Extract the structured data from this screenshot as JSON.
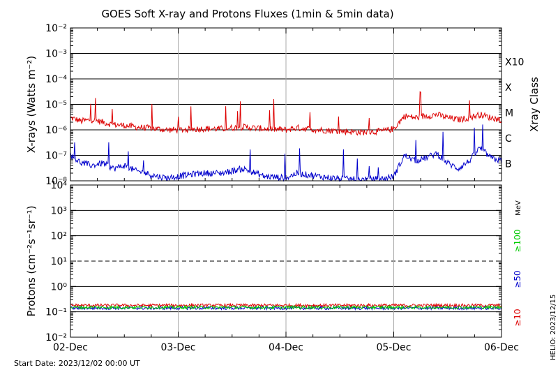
{
  "title": "GOES Soft X-ray and Protons Fluxes   (1min & 5min data)",
  "start_date": "Start Date: 2023/12/02 00:00 UT",
  "stamp": "HELIO: 2023/12/15",
  "chart_data": [
    {
      "type": "line",
      "panel": "xrays",
      "ylabel": "X-rays (Watts m⁻²)",
      "y_scale": "log",
      "ylim": [
        1e-08,
        0.01
      ],
      "y_ticks": [
        "10⁻²",
        "10⁻³",
        "10⁻⁴",
        "10⁻⁵",
        "10⁻⁶",
        "10⁻⁷",
        "10⁻⁸"
      ],
      "right_label": "Xray Class",
      "class_labels": [
        "X10",
        "X",
        "M",
        "C",
        "B"
      ],
      "class_levels": [
        0.001,
        0.0001,
        1e-05,
        1e-06,
        1e-07
      ],
      "grid": "horizontal at each decade, vertical at each day",
      "x_ticks": [
        "02-Dec",
        "03-Dec",
        "04-Dec",
        "05-Dec",
        "06-Dec"
      ],
      "series": [
        {
          "color": "#dd0000",
          "x_days": [
            0,
            0.1,
            0.2,
            0.3,
            0.4,
            0.5,
            0.6,
            0.7,
            0.8,
            0.9,
            1.0,
            1.2,
            1.4,
            1.6,
            1.8,
            2.0,
            2.1,
            2.3,
            2.5,
            2.7,
            2.9,
            3.0,
            3.1,
            3.2,
            3.3,
            3.4,
            3.5,
            3.6,
            3.7,
            3.8,
            3.9,
            4.0
          ],
          "values": [
            3e-06,
            2.2e-06,
            2.5e-06,
            2e-06,
            1.6e-06,
            1.5e-06,
            1.3e-06,
            1.2e-06,
            1.1e-06,
            1e-06,
            1e-06,
            1.1e-06,
            1.1e-06,
            1.3e-06,
            1.1e-06,
            1e-06,
            1.2e-06,
            1e-06,
            9e-07,
            8e-07,
            9e-07,
            1.1e-06,
            3.5e-06,
            3e-06,
            3.5e-06,
            4e-06,
            3e-06,
            2.5e-06,
            3e-06,
            4e-06,
            3e-06,
            2.5e-06
          ]
        },
        {
          "color": "#0000cc",
          "x_days": [
            0,
            0.1,
            0.2,
            0.3,
            0.4,
            0.5,
            0.6,
            0.7,
            0.8,
            0.9,
            1.0,
            1.2,
            1.4,
            1.6,
            1.8,
            2.0,
            2.1,
            2.3,
            2.5,
            2.7,
            2.9,
            3.0,
            3.1,
            3.2,
            3.3,
            3.4,
            3.5,
            3.6,
            3.7,
            3.8,
            3.9,
            4.0
          ],
          "values": [
            1e-07,
            5e-08,
            4e-08,
            5e-08,
            3e-08,
            4e-08,
            2.5e-08,
            2e-08,
            1.5e-08,
            1.3e-08,
            1.5e-08,
            2e-08,
            2e-08,
            3e-08,
            1.5e-08,
            1.3e-08,
            2e-08,
            1.5e-08,
            1.2e-08,
            1.1e-08,
            1.2e-08,
            1.5e-08,
            1e-07,
            6e-08,
            8e-08,
            1.2e-07,
            5e-08,
            3e-08,
            6e-08,
            2e-07,
            8e-08,
            6e-08
          ]
        }
      ]
    },
    {
      "type": "line",
      "panel": "protons",
      "ylabel": "Protons (cm⁻²s⁻¹sr⁻¹)",
      "y_scale": "log",
      "ylim": [
        0.01,
        10000.0
      ],
      "y_ticks": [
        "10⁴",
        "10³",
        "10²",
        "10¹",
        "10⁰",
        "10⁻¹",
        "10⁻²"
      ],
      "threshold_level": 10,
      "energy_unit": "MeV",
      "x_ticks": [
        "02-Dec",
        "03-Dec",
        "04-Dec",
        "05-Dec",
        "06-Dec"
      ],
      "series": [
        {
          "name": "≥10",
          "color": "#dd0000",
          "x_days": [
            0,
            1,
            2,
            3,
            4
          ],
          "values": [
            0.18,
            0.18,
            0.18,
            0.18,
            0.18
          ]
        },
        {
          "name": "≥50",
          "color": "#0000cc",
          "x_days": [
            0,
            1,
            2,
            3,
            4
          ],
          "values": [
            0.14,
            0.14,
            0.14,
            0.14,
            0.14
          ]
        },
        {
          "name": "≥100",
          "color": "#00cc00",
          "x_days": [
            0,
            1,
            2,
            3,
            4
          ],
          "values": [
            0.15,
            0.15,
            0.15,
            0.15,
            0.15
          ]
        }
      ]
    }
  ]
}
